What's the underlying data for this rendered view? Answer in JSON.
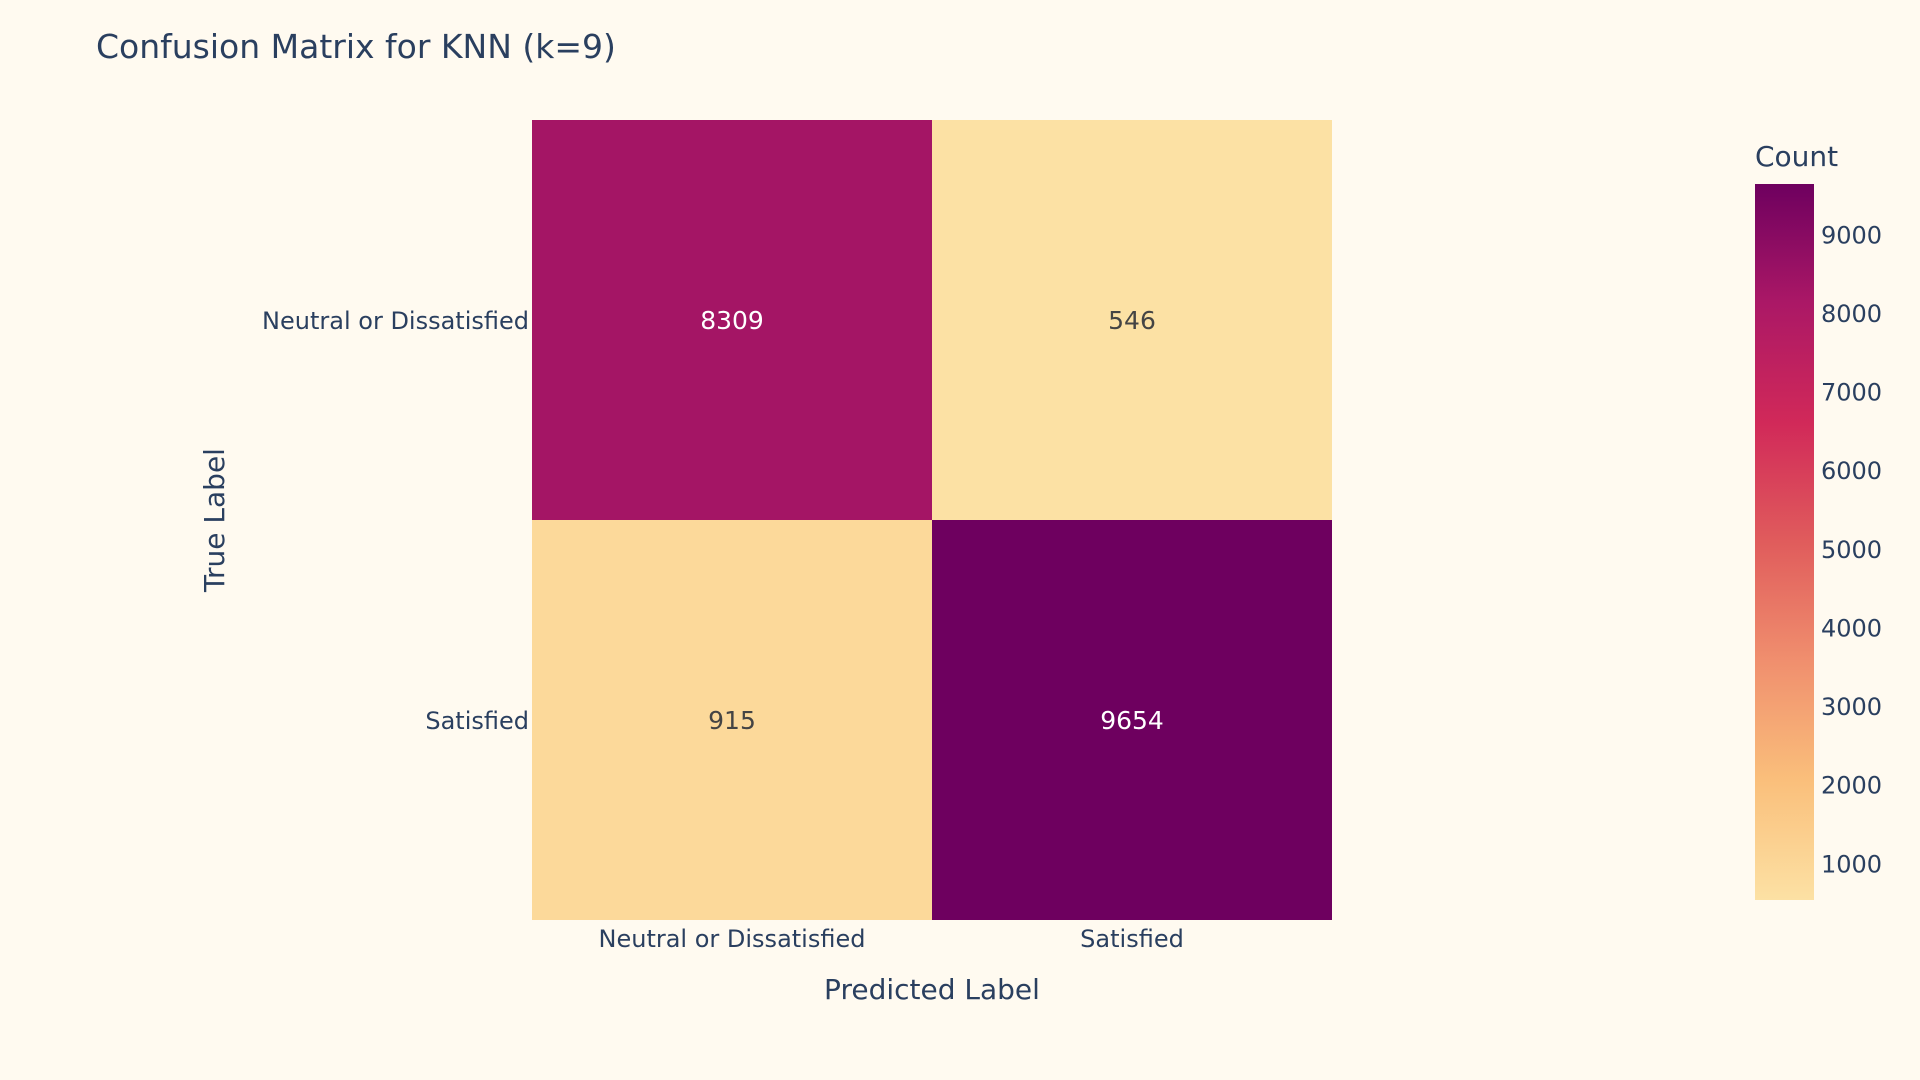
{
  "chart_data": {
    "type": "heatmap",
    "title": "Confusion Matrix for KNN (k=9)",
    "xlabel": "Predicted Label",
    "ylabel": "True Label",
    "x_categories": [
      "Neutral or Dissatisfied",
      "Satisfied"
    ],
    "y_categories": [
      "Neutral or Dissatisfied",
      "Satisfied"
    ],
    "z": [
      [
        8309,
        546
      ],
      [
        915,
        9654
      ]
    ],
    "colorbar": {
      "title": "Count",
      "ticks": [
        1000,
        2000,
        3000,
        4000,
        5000,
        6000,
        7000,
        8000,
        9000
      ],
      "zmin": 546,
      "zmax": 9654
    },
    "colorscale": [
      "#fce1a4",
      "#fabf7b",
      "#f08f6e",
      "#e05c5c",
      "#d12959",
      "#ab1866",
      "#6e005f"
    ],
    "text_color_dark": "#444444",
    "text_color_light": "#ffffff",
    "axis_text_color": "#2a3f5f",
    "background": "#fffaf0"
  }
}
